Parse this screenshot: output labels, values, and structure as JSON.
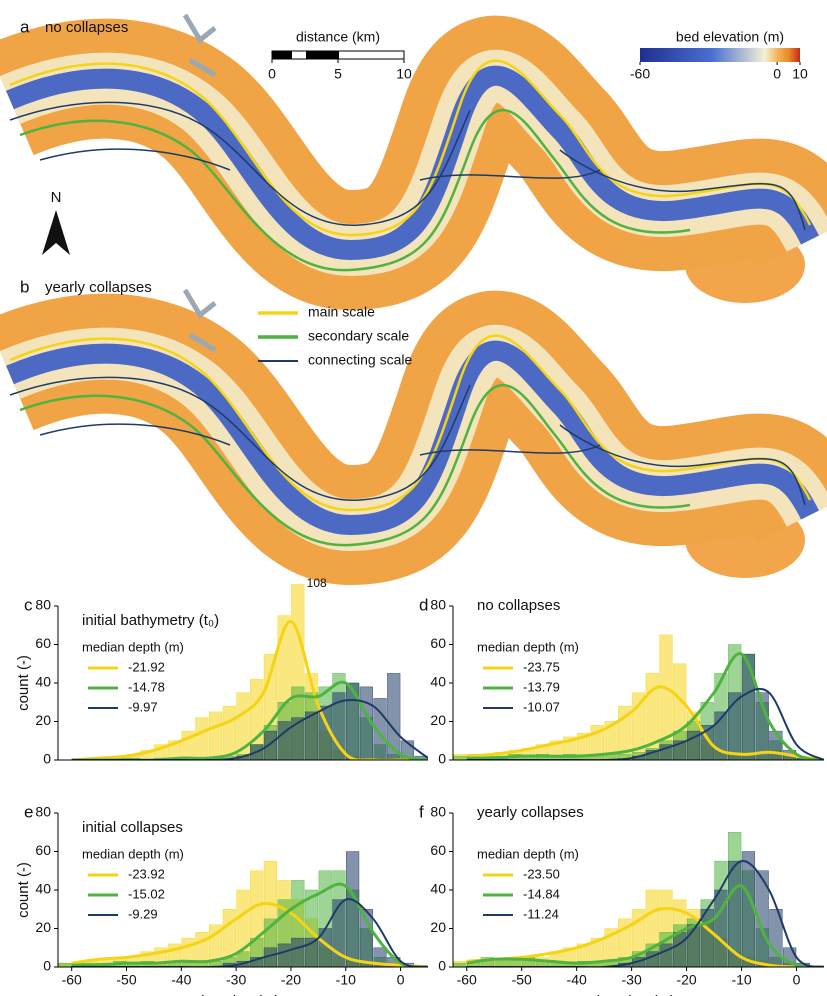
{
  "figure": {
    "panel_a": {
      "label": "a",
      "title": "no collapses"
    },
    "panel_b": {
      "label": "b",
      "title": "yearly collapses"
    },
    "north": "N",
    "scale_bar": {
      "label": "distance (km)",
      "lim": [
        0,
        10
      ],
      "ticks": [
        0,
        5,
        10
      ]
    },
    "colorbar": {
      "label": "bed elevation (m)",
      "lim": [
        -60,
        10
      ],
      "ticks": [
        -60,
        0,
        10
      ]
    },
    "map_legend": [
      {
        "name": "main scale",
        "color": "#f5d416"
      },
      {
        "name": "secondary scale",
        "color": "#4fb340"
      },
      {
        "name": "connecting scale",
        "color": "#1d3b66"
      }
    ]
  },
  "chart_data": [
    {
      "type": "histogram",
      "label": "c",
      "title": "initial bathymetry (t₀)",
      "ylabel": "count (-)",
      "legend_title": "median depth (m)",
      "xlim": [
        -62.5,
        5
      ],
      "ylim": [
        0,
        80
      ],
      "yticks": [
        0,
        20,
        40,
        60,
        80
      ],
      "bins": [
        -62.5,
        -60,
        -57.5,
        -55,
        -52.5,
        -50,
        -47.5,
        -45,
        -42.5,
        -40,
        -37.5,
        -35,
        -32.5,
        -30,
        -27.5,
        -25,
        -22.5,
        -20,
        -17.5,
        -15,
        -12.5,
        -10,
        -7.5,
        -5,
        -2.5,
        0,
        2.5,
        5
      ],
      "kde_x": [
        -60,
        -55,
        -50,
        -45,
        -40,
        -35,
        -30,
        -25,
        -20,
        -15,
        -10,
        -5,
        0,
        5
      ],
      "series": [
        {
          "name": "-21.92",
          "color": "#f5d416",
          "values": [
            0,
            0,
            0,
            1,
            2,
            3,
            5,
            8,
            10,
            15,
            22,
            25,
            28,
            35,
            42,
            55,
            75,
            108,
            45,
            15,
            5,
            2,
            1,
            0,
            0,
            0,
            0
          ],
          "value_labels": [
            null,
            null,
            null,
            null,
            null,
            null,
            null,
            null,
            null,
            null,
            null,
            null,
            null,
            null,
            null,
            null,
            null,
            "108",
            null,
            null,
            null,
            null,
            null,
            null,
            null,
            null,
            null
          ],
          "kde": [
            0,
            1,
            2,
            5,
            10,
            16,
            22,
            35,
            72,
            28,
            3,
            0,
            0,
            0
          ]
        },
        {
          "name": "-14.78",
          "color": "#4fb340",
          "values": [
            0,
            0,
            1,
            0,
            1,
            1,
            0,
            1,
            1,
            1,
            1,
            1,
            2,
            3,
            8,
            18,
            30,
            38,
            35,
            38,
            45,
            40,
            22,
            8,
            3,
            1,
            0
          ],
          "kde": [
            0,
            0,
            0,
            0,
            1,
            1,
            4,
            15,
            32,
            33,
            40,
            18,
            3,
            0
          ]
        },
        {
          "name": "-9.97",
          "color": "#1d3b66",
          "values": [
            0,
            0,
            0,
            0,
            0,
            0,
            0,
            0,
            0,
            0,
            0,
            0,
            0,
            2,
            8,
            15,
            20,
            22,
            25,
            28,
            35,
            40,
            38,
            32,
            45,
            10,
            2
          ],
          "kde": [
            0,
            0,
            0,
            0,
            0,
            0,
            1,
            6,
            17,
            25,
            31,
            28,
            12,
            1
          ]
        }
      ]
    },
    {
      "type": "histogram",
      "label": "d",
      "title": "no collapses",
      "legend_title": "median depth (m)",
      "xlim": [
        -62.5,
        5
      ],
      "ylim": [
        0,
        80
      ],
      "yticks": [
        0,
        20,
        40,
        60,
        80
      ],
      "bins": [
        -62.5,
        -60,
        -57.5,
        -55,
        -52.5,
        -50,
        -47.5,
        -45,
        -42.5,
        -40,
        -37.5,
        -35,
        -32.5,
        -30,
        -27.5,
        -25,
        -22.5,
        -20,
        -17.5,
        -15,
        -12.5,
        -10,
        -7.5,
        -5,
        -2.5,
        0,
        2.5,
        5
      ],
      "kde_x": [
        -60,
        -55,
        -50,
        -45,
        -40,
        -35,
        -30,
        -25,
        -20,
        -15,
        -10,
        -5,
        0,
        5
      ],
      "series": [
        {
          "name": "-23.75",
          "color": "#f5d416",
          "values": [
            3,
            3,
            3,
            4,
            5,
            6,
            8,
            10,
            12,
            14,
            18,
            20,
            28,
            35,
            45,
            65,
            50,
            25,
            10,
            5,
            3,
            2,
            2,
            5,
            3,
            0,
            0
          ],
          "kde": [
            2,
            3,
            5,
            8,
            11,
            16,
            25,
            38,
            28,
            7,
            3,
            4,
            2,
            0
          ]
        },
        {
          "name": "-13.79",
          "color": "#4fb340",
          "values": [
            2,
            2,
            2,
            2,
            3,
            2,
            3,
            2,
            3,
            2,
            3,
            3,
            3,
            4,
            6,
            10,
            15,
            20,
            30,
            45,
            60,
            55,
            30,
            10,
            3,
            1,
            0
          ],
          "kde": [
            1,
            1,
            2,
            2,
            2,
            3,
            5,
            10,
            18,
            35,
            55,
            20,
            3,
            0
          ]
        },
        {
          "name": "-10.07",
          "color": "#1d3b66",
          "values": [
            0,
            0,
            0,
            0,
            0,
            0,
            0,
            0,
            0,
            0,
            0,
            0,
            0,
            2,
            5,
            8,
            10,
            15,
            18,
            25,
            35,
            55,
            35,
            15,
            5,
            1,
            0
          ],
          "kde": [
            0,
            0,
            0,
            0,
            0,
            0,
            1,
            5,
            10,
            18,
            33,
            35,
            8,
            0
          ]
        }
      ]
    },
    {
      "type": "histogram",
      "label": "e",
      "title": "initial collapses",
      "ylabel": "count (-)",
      "xlabel": "elevation (m)",
      "legend_title": "median depth (m)",
      "xlim": [
        -62.5,
        5
      ],
      "ylim": [
        0,
        80
      ],
      "yticks": [
        0,
        20,
        40,
        60,
        80
      ],
      "xticks": [
        -60,
        -50,
        -40,
        -30,
        -20,
        -10,
        0
      ],
      "bins": [
        -62.5,
        -60,
        -57.5,
        -55,
        -52.5,
        -50,
        -47.5,
        -45,
        -42.5,
        -40,
        -37.5,
        -35,
        -32.5,
        -30,
        -27.5,
        -25,
        -22.5,
        -20,
        -17.5,
        -15,
        -12.5,
        -10,
        -7.5,
        -5,
        -2.5,
        0,
        2.5,
        5
      ],
      "kde_x": [
        -60,
        -55,
        -50,
        -45,
        -40,
        -35,
        -30,
        -25,
        -20,
        -15,
        -10,
        -5,
        0,
        5
      ],
      "series": [
        {
          "name": "-23.92",
          "color": "#f5d416",
          "values": [
            2,
            2,
            3,
            4,
            5,
            5,
            8,
            10,
            12,
            15,
            18,
            22,
            30,
            40,
            50,
            55,
            45,
            35,
            25,
            10,
            5,
            3,
            2,
            2,
            1,
            0,
            0
          ],
          "kde": [
            2,
            4,
            5,
            7,
            10,
            15,
            25,
            33,
            28,
            15,
            5,
            2,
            1,
            0
          ]
        },
        {
          "name": "-15.02",
          "color": "#4fb340",
          "values": [
            2,
            2,
            2,
            2,
            3,
            2,
            3,
            2,
            3,
            3,
            3,
            3,
            5,
            8,
            15,
            25,
            35,
            45,
            40,
            50,
            50,
            40,
            20,
            5,
            2,
            0,
            0
          ],
          "kde": [
            1,
            1,
            2,
            2,
            3,
            3,
            7,
            18,
            30,
            38,
            42,
            18,
            2,
            0
          ]
        },
        {
          "name": "-9.29",
          "color": "#1d3b66",
          "values": [
            0,
            0,
            0,
            0,
            0,
            0,
            0,
            0,
            0,
            0,
            0,
            0,
            2,
            3,
            5,
            10,
            12,
            15,
            15,
            20,
            35,
            60,
            30,
            10,
            5,
            2,
            0
          ],
          "kde": [
            0,
            0,
            0,
            0,
            0,
            0,
            1,
            5,
            9,
            15,
            35,
            25,
            3,
            0
          ]
        }
      ]
    },
    {
      "type": "histogram",
      "label": "f",
      "title": "yearly collapses",
      "xlabel": "elevation (m)",
      "legend_title": "median depth (m)",
      "xlim": [
        -62.5,
        5
      ],
      "ylim": [
        0,
        80
      ],
      "yticks": [
        0,
        20,
        40,
        60,
        80
      ],
      "xticks": [
        -60,
        -50,
        -40,
        -30,
        -20,
        -10,
        0
      ],
      "bins": [
        -62.5,
        -60,
        -57.5,
        -55,
        -52.5,
        -50,
        -47.5,
        -45,
        -42.5,
        -40,
        -37.5,
        -35,
        -32.5,
        -30,
        -27.5,
        -25,
        -22.5,
        -20,
        -17.5,
        -15,
        -12.5,
        -10,
        -7.5,
        -5,
        -2.5,
        0,
        2.5,
        5
      ],
      "kde_x": [
        -60,
        -55,
        -50,
        -45,
        -40,
        -35,
        -30,
        -25,
        -20,
        -15,
        -10,
        -5,
        0,
        5
      ],
      "series": [
        {
          "name": "-23.50",
          "color": "#f5d416",
          "values": [
            3,
            3,
            3,
            3,
            4,
            5,
            5,
            8,
            10,
            12,
            15,
            20,
            25,
            30,
            40,
            40,
            35,
            30,
            25,
            15,
            8,
            5,
            3,
            1,
            0,
            0,
            0
          ],
          "kde": [
            3,
            4,
            5,
            7,
            10,
            15,
            22,
            30,
            28,
            17,
            5,
            1,
            0,
            0
          ]
        },
        {
          "name": "-14.84",
          "color": "#4fb340",
          "values": [
            2,
            3,
            5,
            4,
            5,
            5,
            3,
            3,
            2,
            3,
            3,
            3,
            5,
            8,
            12,
            18,
            22,
            25,
            35,
            55,
            70,
            50,
            20,
            5,
            2,
            0,
            0
          ],
          "kde": [
            2,
            4,
            4,
            3,
            2,
            3,
            5,
            12,
            20,
            25,
            42,
            12,
            1,
            0
          ]
        },
        {
          "name": "-11.24",
          "color": "#1d3b66",
          "values": [
            0,
            0,
            0,
            0,
            0,
            0,
            0,
            0,
            0,
            0,
            0,
            0,
            2,
            5,
            8,
            12,
            18,
            22,
            30,
            40,
            55,
            60,
            50,
            30,
            10,
            2,
            0
          ],
          "kde": [
            0,
            0,
            0,
            0,
            0,
            0,
            2,
            7,
            15,
            35,
            55,
            40,
            5,
            0
          ]
        }
      ]
    }
  ]
}
